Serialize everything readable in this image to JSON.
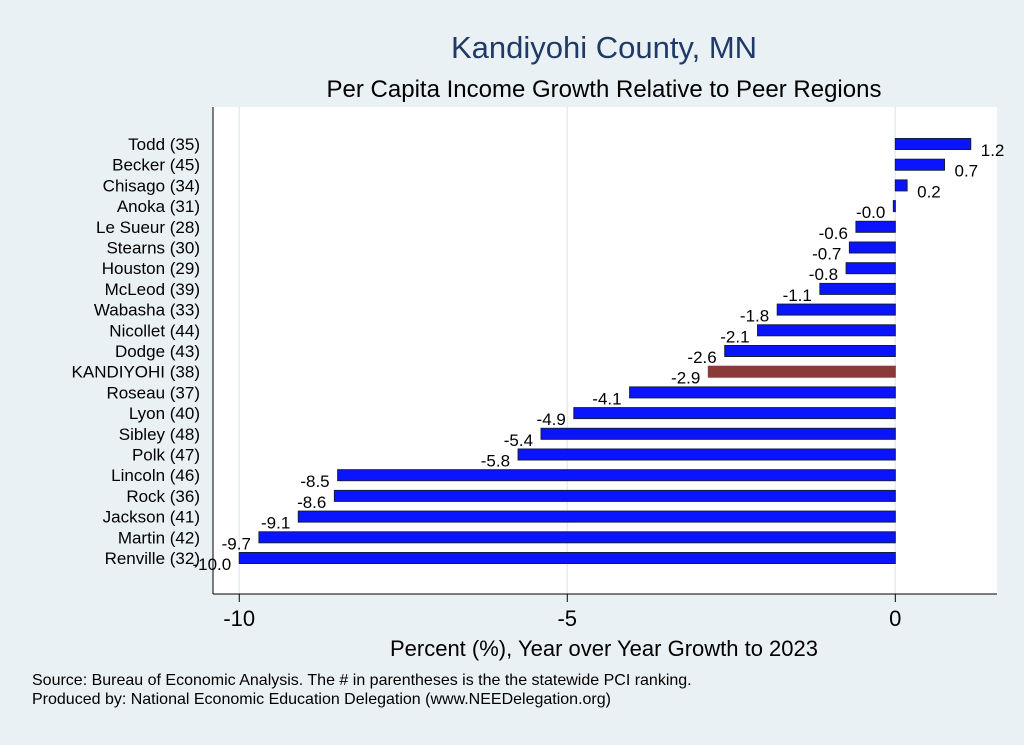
{
  "chart_data": {
    "type": "bar",
    "orientation": "horizontal",
    "title": "Kandiyohi County, MN",
    "subtitle": "Per Capita Income Growth Relative to Peer Regions",
    "xlabel": "Percent (%), Year over Year Growth to 2023",
    "ylabel": "",
    "xlim": [
      -10.4,
      1.55
    ],
    "xticks": [
      -10,
      -5,
      0
    ],
    "xtick_labels": [
      "-10",
      "-5",
      "0"
    ],
    "grid": true,
    "categories": [
      "Todd (35)",
      "Becker (45)",
      "Chisago (34)",
      "Anoka (31)",
      "Le Sueur (28)",
      "Stearns (30)",
      "Houston (29)",
      "McLeod (39)",
      "Wabasha (33)",
      "Nicollet (44)",
      "Dodge (43)",
      "KANDIYOHI (38)",
      "Roseau (37)",
      "Lyon (40)",
      "Sibley (48)",
      "Polk (47)",
      "Lincoln (46)",
      "Rock (36)",
      "Jackson (41)",
      "Martin (42)",
      "Renville (32)"
    ],
    "values": [
      1.15,
      0.75,
      0.18,
      -0.03,
      -0.6,
      -0.7,
      -0.75,
      -1.15,
      -1.8,
      -2.1,
      -2.6,
      -2.85,
      -4.05,
      -4.9,
      -5.4,
      -5.75,
      -8.5,
      -8.55,
      -9.1,
      -9.7,
      -10.0
    ],
    "value_labels": [
      "1.2",
      "0.7",
      "0.2",
      "-0.0",
      "-0.6",
      "-0.7",
      "-0.8",
      "-1.1",
      "-1.8",
      "-2.1",
      "-2.6",
      "-2.9",
      "-4.1",
      "-4.9",
      "-5.4",
      "-5.8",
      "-8.5",
      "-8.6",
      "-9.1",
      "-9.7",
      "-10.0"
    ],
    "highlight_category": "KANDIYOHI (38)",
    "colors": {
      "bar": "#0a14ff",
      "highlight": "#8b3a3a",
      "bar_edge": "#141e3c",
      "title": "#1f3a66"
    }
  },
  "notes": {
    "source": "Source: Bureau of Economic Analysis. The # in parentheses is the the statewide PCI ranking.",
    "produced_by": "Produced by: National Economic Education Delegation (www.NEEDelegation.org)"
  }
}
